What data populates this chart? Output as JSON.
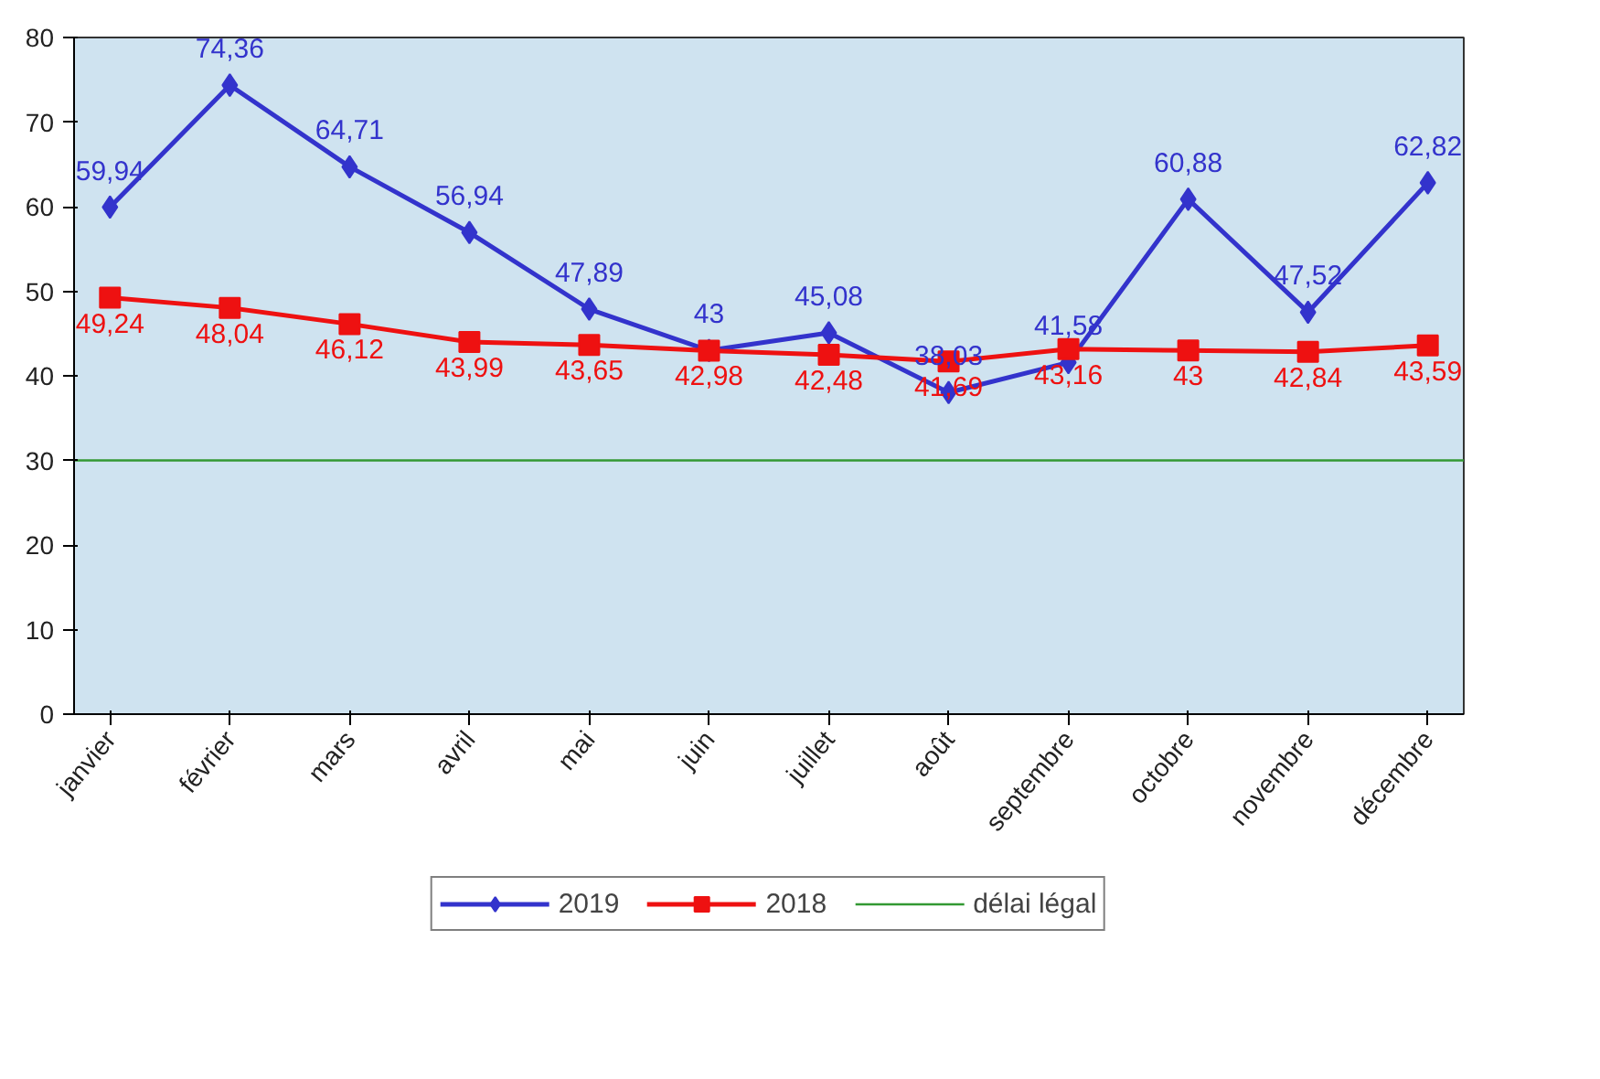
{
  "chart_data": {
    "type": "line",
    "categories": [
      "janvier",
      "février",
      "mars",
      "avril",
      "mai",
      "juin",
      "juillet",
      "août",
      "septembre",
      "octobre",
      "novembre",
      "décembre"
    ],
    "ylim": [
      0,
      80
    ],
    "yticks": [
      0,
      10,
      20,
      30,
      40,
      50,
      60,
      70,
      80
    ],
    "grid": false,
    "legend": "bottom",
    "line_style": "solid",
    "series": [
      {
        "name": "2019",
        "color": "#3333cc",
        "marker": "diamond",
        "values": [
          59.94,
          74.36,
          64.71,
          56.94,
          47.89,
          43,
          45.08,
          38.03,
          41.58,
          60.88,
          47.52,
          62.82
        ],
        "value_labels": [
          "59,94",
          "74,36",
          "64,71",
          "56,94",
          "47,89",
          "43",
          "45,08",
          "38,03",
          "41,58",
          "60,88",
          "47,52",
          "62,82"
        ]
      },
      {
        "name": "2018",
        "color": "#ee1111",
        "marker": "square",
        "values": [
          49.24,
          48.04,
          46.12,
          43.99,
          43.65,
          42.98,
          42.48,
          41.69,
          43.16,
          43,
          42.84,
          43.59
        ],
        "value_labels": [
          "49,24",
          "48,04",
          "46,12",
          "43,99",
          "43,65",
          "42,98",
          "42,48",
          "41,69",
          "43,16",
          "43",
          "42,84",
          "43,59"
        ]
      }
    ],
    "ref_lines": [
      {
        "axis": "y",
        "value": 30,
        "label": "délai légal",
        "color": "#339933"
      }
    ]
  }
}
